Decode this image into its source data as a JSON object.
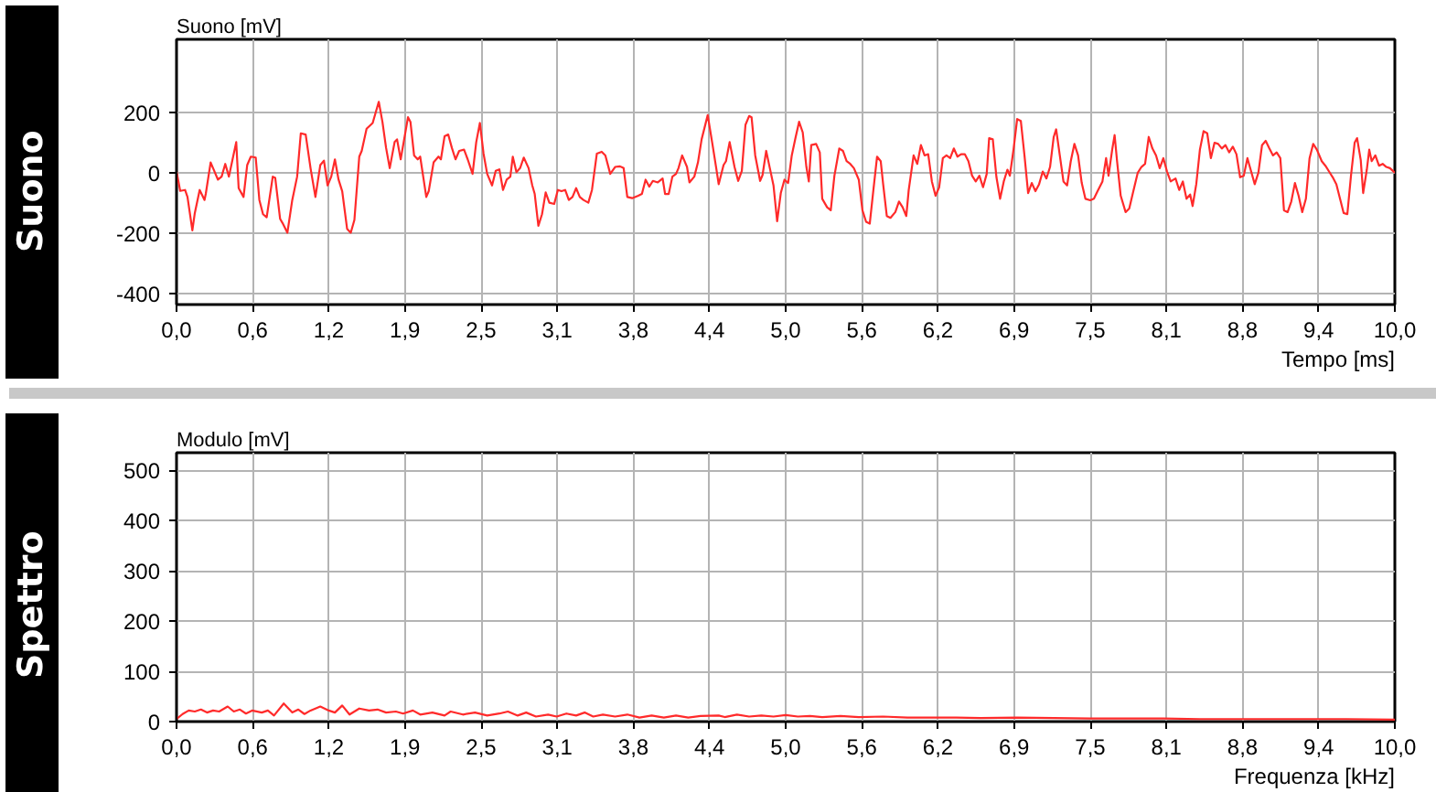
{
  "chart_data": [
    {
      "type": "line",
      "title": "Suono",
      "ylabel": "Suono [mV]",
      "xlabel": "Tempo [ms]",
      "color": "#ff2a2a",
      "grid": true,
      "xlim": [
        0,
        10
      ],
      "ylim": [
        -435,
        440
      ],
      "yticks": [
        -400,
        -200,
        0,
        200
      ],
      "xticks": [
        {
          "value": 0,
          "label": "0,0"
        },
        {
          "value": 0.625,
          "label": "0,6"
        },
        {
          "value": 1.25,
          "label": "1,2"
        },
        {
          "value": 1.875,
          "label": "1,9"
        },
        {
          "value": 2.5,
          "label": "2,5"
        },
        {
          "value": 3.125,
          "label": "3,1"
        },
        {
          "value": 3.75,
          "label": "3,8"
        },
        {
          "value": 4.375,
          "label": "4,4"
        },
        {
          "value": 5,
          "label": "5,0"
        },
        {
          "value": 5.625,
          "label": "5,6"
        },
        {
          "value": 6.25,
          "label": "6,2"
        },
        {
          "value": 6.875,
          "label": "6,9"
        },
        {
          "value": 7.5,
          "label": "7,5"
        },
        {
          "value": 8.125,
          "label": "8,1"
        },
        {
          "value": 8.75,
          "label": "8,8"
        },
        {
          "value": 9.375,
          "label": "9,4"
        },
        {
          "value": 10,
          "label": "10,0"
        }
      ],
      "x": [
        0,
        0.03,
        0.07,
        0.09,
        0.13,
        0.15,
        0.19,
        0.23,
        0.24,
        0.28,
        0.3,
        0.34,
        0.37,
        0.4,
        0.43,
        0.46,
        0.49,
        0.51,
        0.55,
        0.58,
        0.61,
        0.65,
        0.68,
        0.71,
        0.74,
        0.79,
        0.81,
        0.85,
        0.87,
        0.91,
        0.95,
        0.99,
        1.02,
        1.06,
        1.1,
        1.14,
        1.18,
        1.21,
        1.24,
        1.27,
        1.3,
        1.33,
        1.36,
        1.4,
        1.43,
        1.46,
        1.5,
        1.52,
        1.56,
        1.61,
        1.66,
        1.69,
        1.72,
        1.75,
        1.79,
        1.81,
        1.84,
        1.9,
        1.92,
        1.95,
        1.98,
        2.0,
        2.05,
        2.07,
        2.11,
        2.15,
        2.17,
        2.2,
        2.23,
        2.26,
        2.29,
        2.32,
        2.36,
        2.39,
        2.43,
        2.46,
        2.49,
        2.52,
        2.55,
        2.59,
        2.62,
        2.65,
        2.68,
        2.71,
        2.74,
        2.76,
        2.79,
        2.82,
        2.85,
        2.89,
        2.92,
        2.94,
        2.97,
        3.0,
        3.03,
        3.06,
        3.1,
        3.13,
        3.16,
        3.19,
        3.22,
        3.25,
        3.28,
        3.31,
        3.34,
        3.38,
        3.41,
        3.45,
        3.49,
        3.52,
        3.56,
        3.6,
        3.64,
        3.67,
        3.7,
        3.74,
        3.79,
        3.82,
        3.85,
        3.88,
        3.91,
        3.95,
        3.99,
        4.01,
        4.04,
        4.07,
        4.1,
        4.12,
        4.15,
        4.19,
        4.21,
        4.25,
        4.28,
        4.31,
        4.36,
        4.4,
        4.43,
        4.45,
        4.49,
        4.51,
        4.54,
        4.58,
        4.61,
        4.64,
        4.67,
        4.7,
        4.72,
        4.75,
        4.79,
        4.81,
        4.84,
        4.87,
        4.9,
        4.93,
        4.96,
        4.99,
        5.02,
        5.05,
        5.08,
        5.11,
        5.14,
        5.17,
        5.19,
        5.21,
        5.25,
        5.28,
        5.3,
        5.34,
        5.37,
        5.4,
        5.44,
        5.47,
        5.5,
        5.53,
        5.56,
        5.6,
        5.63,
        5.66,
        5.69,
        5.72,
        5.75,
        5.78,
        5.8,
        5.83,
        5.86,
        5.9,
        5.93,
        5.96,
        5.99,
        6.01,
        6.05,
        6.08,
        6.11,
        6.14,
        6.17,
        6.2,
        6.23,
        6.26,
        6.29,
        6.32,
        6.35,
        6.38,
        6.41,
        6.44,
        6.47,
        6.5,
        6.53,
        6.56,
        6.59,
        6.62,
        6.65,
        6.67,
        6.7,
        6.73,
        6.76,
        6.79,
        6.82,
        6.84,
        6.87,
        6.9,
        6.93,
        6.96,
        6.99,
        7.02,
        7.05,
        7.08,
        7.11,
        7.14,
        7.17,
        7.2,
        7.22,
        7.25,
        7.28,
        7.31,
        7.34,
        7.37,
        7.4,
        7.43,
        7.46,
        7.5,
        7.53,
        7.56,
        7.6,
        7.63,
        7.65,
        7.68,
        7.7,
        7.72,
        7.75,
        7.79,
        7.82,
        7.85,
        7.89,
        7.92,
        7.95,
        7.98,
        8.01,
        8.04,
        8.07,
        8.1,
        8.13,
        8.16,
        8.2,
        8.23,
        8.26,
        8.29,
        8.32,
        8.34,
        8.37,
        8.4,
        8.43,
        8.46,
        8.49,
        8.52,
        8.55,
        8.58,
        8.61,
        8.64,
        8.67,
        8.7,
        8.73,
        8.76,
        8.79,
        8.81,
        8.85,
        8.88,
        8.91,
        8.94,
        8.97,
        9.0,
        9.03,
        9.06,
        9.09,
        9.12,
        9.15,
        9.18,
        9.21,
        9.24,
        9.27,
        9.3,
        9.33,
        9.36,
        9.4,
        9.43,
        9.46,
        9.49,
        9.52,
        9.55,
        9.58,
        9.61,
        9.64,
        9.67,
        9.69,
        9.72,
        9.74,
        9.77,
        9.79,
        9.81,
        9.84,
        9.87,
        9.9,
        9.93,
        9.96,
        10.0
      ],
      "values": [
        5,
        -60,
        -57,
        -80,
        -190,
        -133,
        -57,
        -90,
        -70,
        34,
        15,
        -23,
        -13,
        29,
        -13,
        44,
        101,
        -51,
        -80,
        25,
        53,
        50,
        -90,
        -137,
        -147,
        -13,
        -17,
        -152,
        -166,
        -198,
        -90,
        -13,
        130,
        126,
        15,
        -80,
        25,
        40,
        -42,
        -13,
        44,
        -23,
        -61,
        -185,
        -198,
        -156,
        53,
        72,
        145,
        164,
        234,
        168,
        82,
        15,
        101,
        110,
        44,
        183,
        168,
        57,
        44,
        53,
        -80,
        -61,
        34,
        53,
        44,
        120,
        126,
        82,
        44,
        72,
        76,
        44,
        -4,
        101,
        164,
        63,
        -4,
        -42,
        6,
        11,
        -57,
        -23,
        -13,
        53,
        2,
        15,
        50,
        15,
        -42,
        -70,
        -175,
        -137,
        -65,
        -99,
        -103,
        -57,
        -61,
        -57,
        -90,
        -80,
        -51,
        -80,
        -90,
        -99,
        -57,
        63,
        69,
        57,
        -4,
        19,
        21,
        15,
        -80,
        -84,
        -76,
        -70,
        -23,
        -46,
        -27,
        -32,
        -19,
        -70,
        -70,
        -13,
        -4,
        15,
        57,
        19,
        -32,
        -13,
        34,
        110,
        190,
        91,
        15,
        -38,
        25,
        38,
        101,
        19,
        -27,
        6,
        158,
        187,
        183,
        57,
        -27,
        -8,
        72,
        15,
        -42,
        -160,
        -67,
        -23,
        -34,
        57,
        114,
        168,
        133,
        19,
        -29,
        91,
        95,
        67,
        -86,
        -114,
        -124,
        -10,
        80,
        72,
        38,
        29,
        15,
        -23,
        -124,
        -162,
        -168,
        -57,
        53,
        38,
        -38,
        -143,
        -149,
        -130,
        -95,
        -114,
        -143,
        -57,
        57,
        29,
        91,
        57,
        61,
        -29,
        -76,
        -48,
        48,
        57,
        48,
        80,
        53,
        61,
        61,
        38,
        -10,
        -29,
        -10,
        -48,
        -4,
        114,
        110,
        -15,
        -86,
        -29,
        10,
        -10,
        76,
        177,
        171,
        57,
        -67,
        -34,
        -61,
        -38,
        4,
        -19,
        19,
        118,
        143,
        57,
        -29,
        -42,
        38,
        95,
        57,
        -34,
        -86,
        -91,
        -86,
        -61,
        -29,
        48,
        -10,
        76,
        124,
        38,
        -76,
        -130,
        -118,
        -67,
        0,
        19,
        29,
        118,
        80,
        57,
        15,
        48,
        4,
        -29,
        -19,
        -57,
        -29,
        -86,
        -72,
        -110,
        -38,
        76,
        137,
        130,
        48,
        99,
        95,
        80,
        91,
        67,
        86,
        61,
        -15,
        -10,
        48,
        19,
        -38,
        0,
        91,
        105,
        80,
        57,
        67,
        48,
        -124,
        -130,
        -95,
        -34,
        -76,
        -130,
        -86,
        48,
        95,
        76,
        38,
        23,
        4,
        -15,
        -38,
        -86,
        -133,
        -137,
        -10,
        99,
        114,
        42,
        -67,
        10,
        76,
        38,
        57,
        23,
        29,
        19,
        15,
        0
      ]
    },
    {
      "type": "line",
      "title": "Spettro",
      "ylabel": "Modulo [mV]",
      "xlabel": "Frequenza [kHz]",
      "color": "#ff2a2a",
      "grid": true,
      "xlim": [
        0,
        10
      ],
      "ylim": [
        0,
        535
      ],
      "yticks": [
        0,
        100,
        200,
        300,
        400,
        500
      ],
      "xticks": [
        {
          "value": 0,
          "label": "0,0"
        },
        {
          "value": 0.625,
          "label": "0,6"
        },
        {
          "value": 1.25,
          "label": "1,2"
        },
        {
          "value": 1.875,
          "label": "1,9"
        },
        {
          "value": 2.5,
          "label": "2,5"
        },
        {
          "value": 3.125,
          "label": "3,1"
        },
        {
          "value": 3.75,
          "label": "3,8"
        },
        {
          "value": 4.375,
          "label": "4,4"
        },
        {
          "value": 5,
          "label": "5,0"
        },
        {
          "value": 5.625,
          "label": "5,6"
        },
        {
          "value": 6.25,
          "label": "6,2"
        },
        {
          "value": 6.875,
          "label": "6,9"
        },
        {
          "value": 7.5,
          "label": "7,5"
        },
        {
          "value": 8.125,
          "label": "8,1"
        },
        {
          "value": 8.75,
          "label": "8,8"
        },
        {
          "value": 9.375,
          "label": "9,4"
        },
        {
          "value": 10,
          "label": "10,0"
        }
      ],
      "x": [
        0,
        0.05,
        0.1,
        0.15,
        0.2,
        0.25,
        0.3,
        0.35,
        0.42,
        0.47,
        0.52,
        0.57,
        0.62,
        0.7,
        0.75,
        0.8,
        0.88,
        0.95,
        1.0,
        1.05,
        1.1,
        1.18,
        1.25,
        1.3,
        1.36,
        1.42,
        1.5,
        1.58,
        1.65,
        1.72,
        1.8,
        1.86,
        1.94,
        2.0,
        2.1,
        2.2,
        2.25,
        2.35,
        2.45,
        2.55,
        2.65,
        2.72,
        2.8,
        2.87,
        2.95,
        3.05,
        3.12,
        3.2,
        3.28,
        3.35,
        3.42,
        3.5,
        3.6,
        3.7,
        3.8,
        3.9,
        4.0,
        4.1,
        4.2,
        4.3,
        4.45,
        4.5,
        4.6,
        4.7,
        4.8,
        4.9,
        5.0,
        5.1,
        5.2,
        5.3,
        5.45,
        5.6,
        5.8,
        6.0,
        6.2,
        6.4,
        6.6,
        6.9,
        7.2,
        7.5,
        7.8,
        8.1,
        8.4,
        8.7,
        9.0,
        9.3,
        9.6,
        10.0
      ],
      "values": [
        5,
        15,
        22,
        20,
        24,
        18,
        22,
        20,
        30,
        20,
        24,
        16,
        22,
        18,
        22,
        12,
        36,
        18,
        24,
        15,
        22,
        30,
        22,
        18,
        32,
        14,
        26,
        22,
        24,
        18,
        20,
        16,
        22,
        14,
        18,
        12,
        20,
        14,
        18,
        12,
        16,
        20,
        12,
        18,
        10,
        14,
        10,
        16,
        12,
        18,
        10,
        14,
        10,
        14,
        8,
        12,
        8,
        12,
        8,
        11,
        12,
        9,
        14,
        10,
        12,
        10,
        13,
        10,
        11,
        9,
        11,
        9,
        10,
        8,
        8,
        8,
        7,
        8,
        7,
        6,
        6,
        6,
        5,
        5,
        5,
        5,
        5,
        4
      ]
    }
  ]
}
